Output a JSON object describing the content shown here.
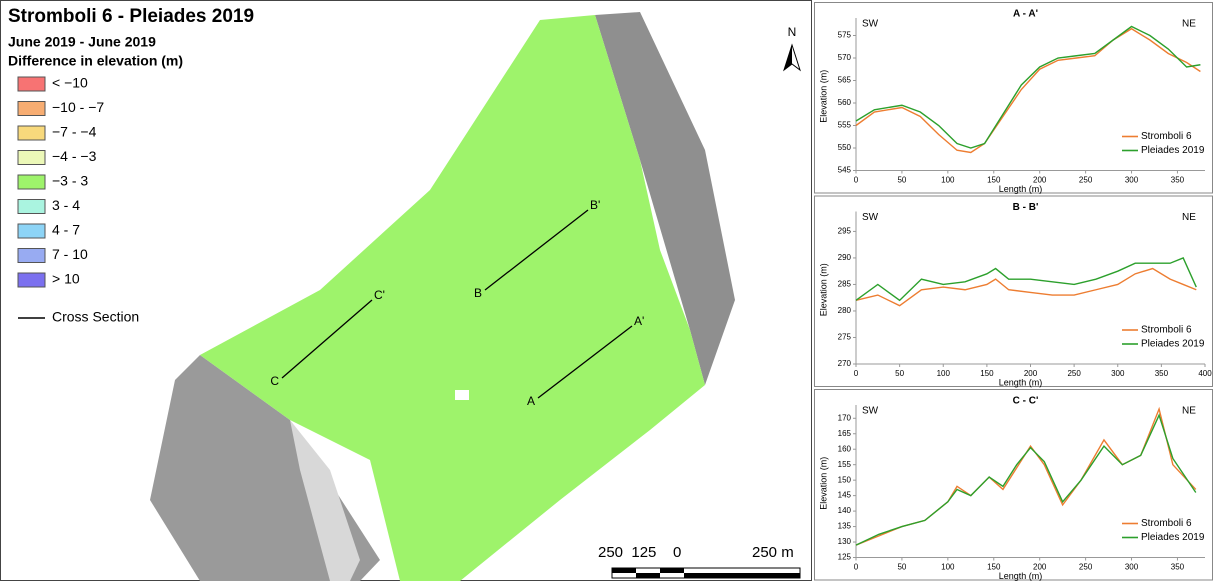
{
  "map": {
    "title": "Stromboli 6 - Pleiades 2019",
    "subtitle": "June 2019 - June 2019",
    "legend_title": "Difference in elevation (m)",
    "legend": [
      {
        "label": "< −10",
        "color": "#f77373"
      },
      {
        "label": "−10 - −7",
        "color": "#f7ad72"
      },
      {
        "label": "−7 - −4",
        "color": "#f8d97c"
      },
      {
        "label": "−4 - −3",
        "color": "#ecf8b8"
      },
      {
        "label": "−3 - 3",
        "color": "#9ef36b"
      },
      {
        "label": "3 - 4",
        "color": "#aaf4e0"
      },
      {
        "label": "4 - 7",
        "color": "#8dd4f6"
      },
      {
        "label": "7 - 10",
        "color": "#98abf2"
      },
      {
        "label": "> 10",
        "color": "#7b70ef"
      }
    ],
    "cross_section_label": "Cross Section",
    "sections": [
      {
        "start": "A",
        "end": "A'"
      },
      {
        "start": "B",
        "end": "B'"
      },
      {
        "start": "C",
        "end": "C'"
      }
    ],
    "north": "N",
    "scale_labels": [
      "250  125    0",
      "250 m"
    ]
  },
  "chart_data": [
    {
      "type": "line",
      "title": "A - A'",
      "left_label": "SW",
      "right_label": "NE",
      "x_label": "Length (m)",
      "y_label": "Elevation (m)",
      "x": [
        0,
        20,
        50,
        70,
        90,
        110,
        125,
        140,
        160,
        180,
        200,
        220,
        240,
        260,
        280,
        300,
        320,
        340,
        360,
        375
      ],
      "series": [
        {
          "name": "Stromboli 6",
          "color": "#ed7d31",
          "values": [
            555,
            558,
            559,
            557,
            553,
            549.5,
            549,
            551,
            557,
            563,
            567.5,
            569.5,
            570,
            570.5,
            574,
            576.5,
            574,
            571,
            569,
            567
          ]
        },
        {
          "name": "Pleiades 2019",
          "color": "#2ca02c",
          "values": [
            556,
            558.5,
            559.5,
            558,
            555,
            551,
            550,
            551,
            557.5,
            564,
            568,
            570,
            570.5,
            571,
            574,
            577,
            575,
            572,
            568,
            568.5
          ]
        }
      ],
      "xlim": [
        0,
        380
      ],
      "xticks": [
        0,
        50,
        100,
        150,
        200,
        250,
        300,
        350
      ],
      "ylim": [
        545,
        578
      ],
      "yticks": [
        545,
        550,
        555,
        560,
        565,
        570,
        575
      ]
    },
    {
      "type": "line",
      "title": "B - B'",
      "left_label": "SW",
      "right_label": "NE",
      "x_label": "Length (m)",
      "y_label": "Elevation (m)",
      "x": [
        0,
        25,
        50,
        75,
        100,
        125,
        150,
        160,
        175,
        200,
        225,
        250,
        275,
        300,
        320,
        340,
        360,
        375,
        390
      ],
      "series": [
        {
          "name": "Stromboli 6",
          "color": "#ed7d31",
          "values": [
            282,
            283,
            281,
            284,
            284.5,
            284,
            285,
            286,
            284,
            283.5,
            283,
            283,
            284,
            285,
            287,
            288,
            286,
            285,
            284
          ]
        },
        {
          "name": "Pleiades 2019",
          "color": "#2ca02c",
          "values": [
            282,
            285,
            282,
            286,
            285,
            285.5,
            287,
            288,
            286,
            286,
            285.5,
            285,
            286,
            287.5,
            289,
            289,
            289,
            290,
            284.5
          ]
        }
      ],
      "xlim": [
        0,
        400
      ],
      "xticks": [
        0,
        50,
        100,
        150,
        200,
        250,
        300,
        350,
        400
      ],
      "ylim": [
        270,
        298
      ],
      "yticks": [
        270,
        275,
        280,
        285,
        290,
        295
      ]
    },
    {
      "type": "line",
      "title": "C - C'",
      "left_label": "SW",
      "right_label": "NE",
      "x_label": "Length (m)",
      "y_label": "Elevation (m)",
      "x": [
        0,
        25,
        50,
        75,
        100,
        110,
        125,
        145,
        160,
        175,
        190,
        205,
        225,
        245,
        270,
        290,
        310,
        330,
        345,
        370
      ],
      "series": [
        {
          "name": "Stromboli 6",
          "color": "#ed7d31",
          "values": [
            129,
            132,
            135,
            137,
            143,
            148,
            145,
            151,
            147,
            154,
            161,
            155,
            142,
            150,
            163,
            155,
            158,
            173,
            155,
            147
          ]
        },
        {
          "name": "Pleiades 2019",
          "color": "#2ca02c",
          "values": [
            129,
            132.5,
            135,
            137,
            143,
            147,
            145,
            151,
            148,
            155,
            160.5,
            156,
            143,
            150,
            161,
            155,
            158,
            171,
            157,
            146
          ]
        }
      ],
      "xlim": [
        0,
        380
      ],
      "xticks": [
        0,
        50,
        100,
        150,
        200,
        250,
        300,
        350
      ],
      "ylim": [
        125,
        173
      ],
      "yticks": [
        125,
        130,
        135,
        140,
        145,
        150,
        155,
        160,
        165,
        170
      ]
    }
  ]
}
